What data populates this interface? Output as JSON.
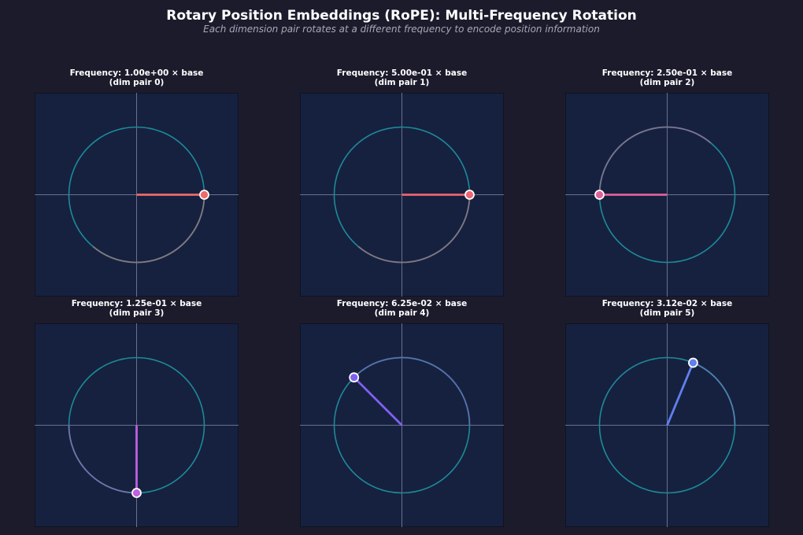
{
  "chart_data": {
    "type": "line",
    "title": "Rotary Position Embeddings (RoPE): Multi-Frequency Rotation",
    "subtitle": "Each dimension pair rotates at a different frequency to encode position information",
    "xlim": [
      -1.5,
      1.5
    ],
    "ylim": [
      -1.5,
      1.5
    ],
    "circle_radius": 1,
    "panels": [
      {
        "title": "Frequency: 1.00e+00 × base",
        "subtitle": "(dim pair 0)",
        "angle_deg": 0,
        "trail_start_deg": -130,
        "color": "#f06a6a"
      },
      {
        "title": "Frequency: 5.00e-01 × base",
        "subtitle": "(dim pair 1)",
        "angle_deg": 0,
        "trail_start_deg": -130,
        "color": "#ee6470"
      },
      {
        "title": "Frequency: 2.50e-01 × base",
        "subtitle": "(dim pair 2)",
        "angle_deg": 180,
        "trail_start_deg": 50,
        "color": "#e0609a"
      },
      {
        "title": "Frequency: 1.25e-01 × base",
        "subtitle": "(dim pair 3)",
        "angle_deg": 270,
        "trail_start_deg": 180,
        "color": "#c060e0"
      },
      {
        "title": "Frequency: 6.25e-02 × base",
        "subtitle": "(dim pair 4)",
        "angle_deg": 135,
        "trail_start_deg": 0,
        "color": "#8060f0"
      },
      {
        "title": "Frequency: 3.12e-02 × base",
        "subtitle": "(dim pair 5)",
        "angle_deg": 67.5,
        "trail_start_deg": 0,
        "color": "#6080f0"
      }
    ],
    "colors": {
      "circle": "#1d8a98",
      "plot_bg": "#16213f",
      "axis": "#6a7090"
    }
  }
}
